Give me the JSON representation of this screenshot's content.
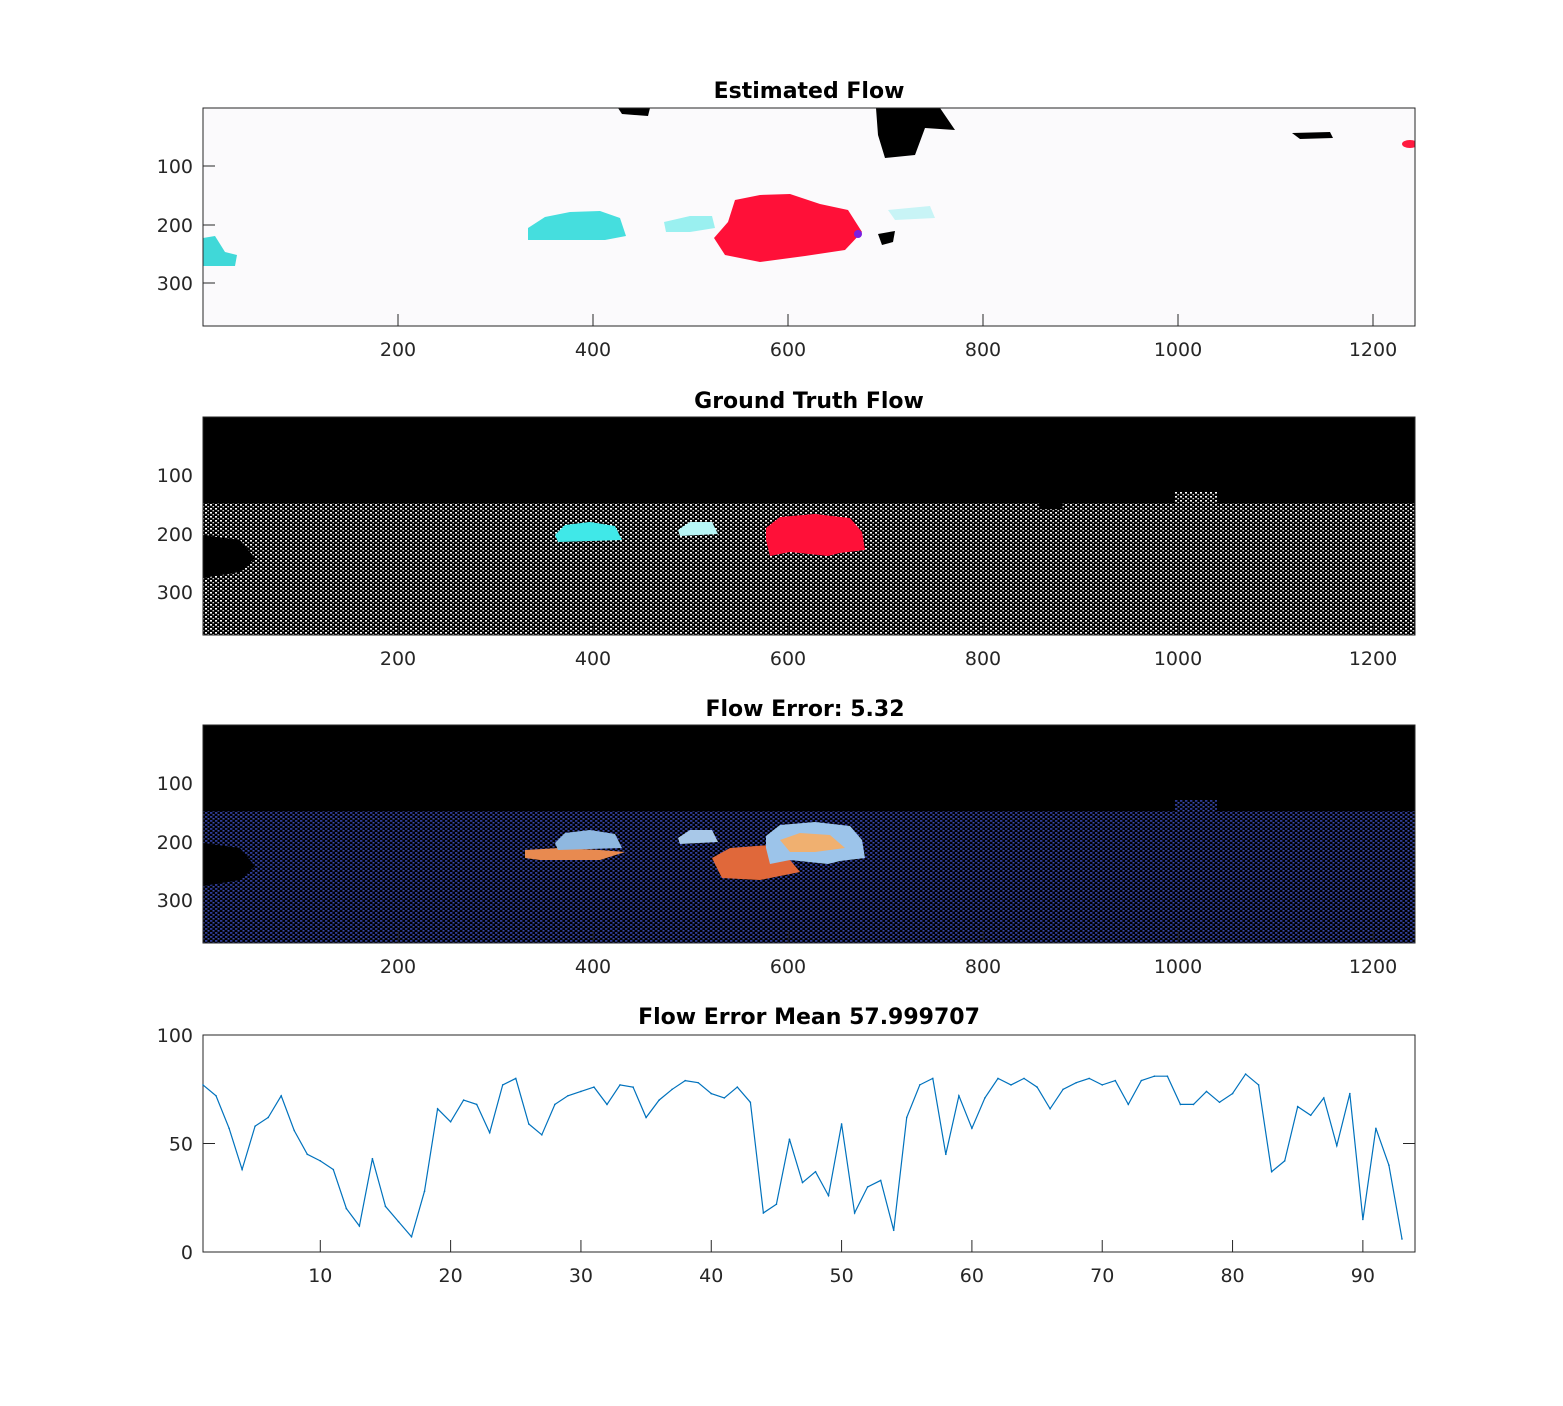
{
  "figure": {
    "panels": [
      {
        "title": "Estimated Flow",
        "kind": "image",
        "image_content": "dense optical flow color map: mostly white background with cyan car blobs and a large red car blob; small black regions at top",
        "xticks": [
          "200",
          "400",
          "600",
          "800",
          "1000",
          "1200"
        ],
        "yticks": [
          "100",
          "200",
          "300"
        ]
      },
      {
        "title": "Ground Truth Flow",
        "kind": "image",
        "image_content": "sparse lidar ground-truth flow: black sky, white dotted points on road and buildings, cyan and red filled car shapes",
        "xticks": [
          "200",
          "400",
          "600",
          "800",
          "1000",
          "1200"
        ],
        "yticks": [
          "100",
          "200",
          "300"
        ]
      },
      {
        "title": "Flow Error: 5.32",
        "kind": "image",
        "image_content": "flow error map: black sky, dark blue dotted points, light blue and orange regions around cars",
        "xticks": [
          "200",
          "400",
          "600",
          "800",
          "1000",
          "1200"
        ],
        "yticks": [
          "100",
          "200",
          "300"
        ]
      }
    ],
    "colors": {
      "line": "#0072bd",
      "axis": "#262626",
      "cyan": "#40e0e0",
      "red": "#ff1030",
      "error_blue": "#2a3590",
      "error_orange": "#e07040"
    }
  },
  "chart_data": {
    "type": "line",
    "title": "Flow Error Mean 57.999707",
    "xlim": [
      1,
      94
    ],
    "ylim": [
      0,
      100
    ],
    "xticks": [
      "10",
      "20",
      "30",
      "40",
      "50",
      "60",
      "70",
      "80",
      "90"
    ],
    "yticks": [
      "0",
      "50",
      "100"
    ],
    "grid": false,
    "series": [
      {
        "x": [
          1,
          2,
          3,
          4,
          5,
          6,
          7,
          8,
          9,
          10,
          11,
          12,
          13,
          14,
          15,
          16,
          17,
          18,
          19,
          20,
          21,
          22,
          23,
          24,
          25,
          26,
          27,
          28,
          29,
          30,
          31,
          32,
          33,
          34,
          35,
          36,
          37,
          38,
          39,
          40,
          41,
          42,
          43,
          44,
          45,
          46,
          47,
          48,
          49,
          50,
          51,
          52,
          53,
          54,
          55,
          56,
          57,
          58,
          59,
          60,
          61,
          62,
          63,
          64,
          65,
          66,
          67,
          68,
          69,
          70,
          71,
          72,
          73,
          74,
          75,
          76,
          77,
          78,
          79,
          80,
          81,
          82,
          83,
          84,
          85,
          86,
          87,
          88,
          89,
          90,
          91,
          92,
          93
        ],
        "values": [
          77,
          72,
          57,
          38,
          58,
          62,
          72,
          56,
          45,
          42,
          38,
          20,
          12,
          43,
          21,
          14,
          7,
          28,
          66,
          60,
          70,
          68,
          55,
          77,
          80,
          59,
          54,
          68,
          72,
          74,
          76,
          68,
          77,
          76,
          62,
          70,
          75,
          79,
          78,
          73,
          71,
          76,
          69,
          18,
          22,
          52,
          32,
          37,
          26,
          59,
          18,
          30,
          33,
          10,
          62,
          77,
          80,
          45,
          72,
          57,
          71,
          80,
          77,
          80,
          76,
          66,
          75,
          78,
          80,
          77,
          79,
          68,
          79,
          81,
          81,
          68,
          68,
          74,
          69,
          73,
          82,
          77,
          37,
          42,
          67,
          63,
          71,
          49,
          73,
          15,
          57,
          40,
          6
        ]
      }
    ]
  }
}
